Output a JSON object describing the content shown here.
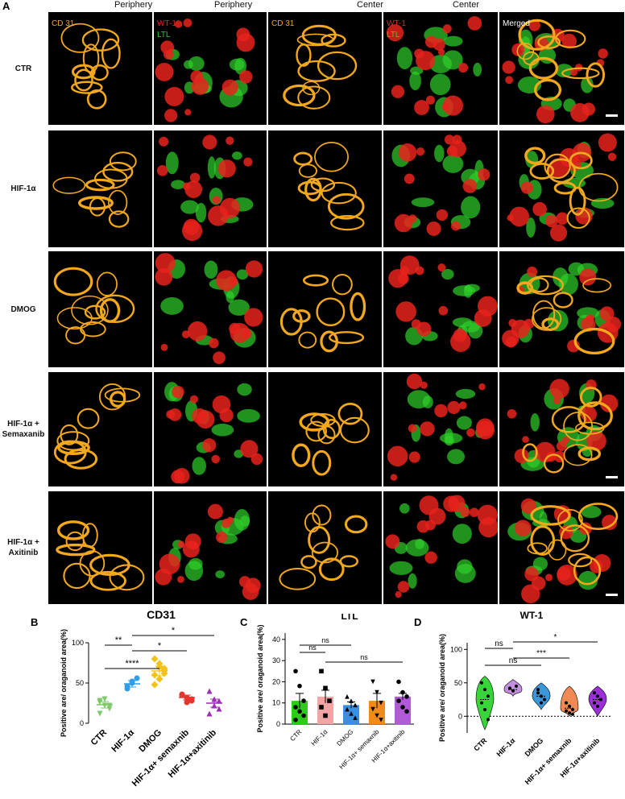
{
  "panel_letters": {
    "a": "A",
    "b": "B",
    "c": "C",
    "d": "D"
  },
  "column_headers": [
    "Periphery",
    "Periphery",
    "Center",
    "Center"
  ],
  "tile_labels": {
    "cd31": "CD 31",
    "wt1": "WT-1",
    "ltl": "LTL",
    "merged": "Merged"
  },
  "rows": [
    {
      "label_lines": [
        "CTR"
      ]
    },
    {
      "label_lines": [
        "HIF-1α"
      ]
    },
    {
      "label_lines": [
        "DMOG"
      ]
    },
    {
      "label_lines": [
        "HIF-1α +",
        "Semaxanib"
      ]
    },
    {
      "label_lines": [
        "HIF-1α +",
        "Axitinib"
      ]
    }
  ],
  "colors": {
    "cd31": "#f4a81c",
    "wt1": "#e8221c",
    "ltl": "#2fd02a",
    "ctr_b": "#7ec96b",
    "hif_b": "#2f9ee8",
    "dmog_b": "#f2c21a",
    "sema_b": "#e8352c",
    "axi_b": "#9b2fb6",
    "ctr_c": "#2ecc1a",
    "hif_c": "#f3a5a5",
    "dmog_c": "#3a8fe0",
    "sema_c": "#f08a1a",
    "axi_c": "#b05ad8",
    "ctr_d": "#37d43a",
    "hif_d": "#c48fe0",
    "dmog_d": "#3a97d9",
    "sema_d": "#f08a55",
    "axi_d": "#9c2fd8"
  },
  "chart_data": [
    {
      "type": "scatter",
      "panel": "B",
      "title": "CD31",
      "ylabel": "Positive are/ oraganoid area(%)",
      "categories": [
        "CTR",
        "HIF-1α",
        "DMOG",
        "HIF-1α+ semaxnib",
        "HIF-1α+axitinib"
      ],
      "yticks": [
        "0",
        "50",
        "100"
      ],
      "ylim": [
        0,
        100
      ],
      "means": [
        23,
        49,
        65,
        32,
        25
      ],
      "sems": [
        4,
        4,
        6,
        3,
        5
      ],
      "points": [
        [
          28,
          22,
          18,
          12,
          30,
          22,
          26
        ],
        [
          43,
          52,
          56,
          46,
          50
        ],
        [
          80,
          74,
          68,
          60,
          55,
          62,
          48,
          70,
          66
        ],
        [
          36,
          32,
          28,
          35,
          26,
          30
        ],
        [
          40,
          22,
          18,
          12,
          30,
          28
        ]
      ],
      "significance": [
        {
          "label": "**",
          "from": 0,
          "to": 1
        },
        {
          "label": "****",
          "from": 0,
          "to": 2
        },
        {
          "label": "*",
          "from": 1,
          "to": 3
        },
        {
          "label": "*",
          "from": 1,
          "to": 4
        }
      ]
    },
    {
      "type": "bar",
      "panel": "C",
      "title": "LTL",
      "ylabel": "Positive are/ oraganoid area(%)",
      "categories": [
        "CTR",
        "HIF-1α",
        "DMOG",
        "HIF-1α+ semaxnib",
        "HIF-1α+axitinib"
      ],
      "yticks": [
        "0",
        "10",
        "20",
        "30",
        "40"
      ],
      "ylim": [
        0,
        43
      ],
      "values": [
        11,
        13,
        9,
        11,
        13
      ],
      "sems": [
        3.5,
        3,
        1.5,
        3.5,
        1.5
      ],
      "points": [
        [
          25,
          18,
          11,
          8,
          6,
          4,
          2
        ],
        [
          25,
          17,
          11,
          8,
          4
        ],
        [
          13,
          11,
          9,
          7,
          5,
          3
        ],
        [
          20,
          15,
          10,
          7,
          4,
          2
        ],
        [
          20,
          15,
          13,
          11,
          8,
          6
        ]
      ],
      "significance": [
        {
          "label": "ns",
          "from": 0,
          "to": 1
        },
        {
          "label": "ns",
          "from": 0,
          "to": 2
        },
        {
          "label": "ns",
          "from": 1,
          "to": 4
        }
      ]
    },
    {
      "type": "violin",
      "panel": "D",
      "title": "WT-1",
      "ylabel": "Positive are/ oraganoid area(%)",
      "categories": [
        "CTR",
        "HIF-1α",
        "DMOG",
        "HIF-1α+ semaxnib",
        "HIF-1α+axitinib"
      ],
      "yticks": [
        "0",
        "50",
        "100"
      ],
      "ylim": [
        -25,
        110
      ],
      "medians": [
        25,
        40,
        30,
        12,
        25
      ],
      "ranges": [
        [
          -20,
          60
        ],
        [
          30,
          55
        ],
        [
          10,
          50
        ],
        [
          0,
          45
        ],
        [
          0,
          45
        ]
      ],
      "points": [
        [
          50,
          40,
          30,
          20,
          10,
          -5
        ],
        [
          42,
          38,
          45
        ],
        [
          40,
          30,
          25,
          35,
          20
        ],
        [
          20,
          15,
          10,
          8,
          5,
          3
        ],
        [
          35,
          30,
          25,
          20,
          15
        ]
      ],
      "significance": [
        {
          "label": "ns",
          "from": 0,
          "to": 1
        },
        {
          "label": "ns",
          "from": 0,
          "to": 2
        },
        {
          "label": "***",
          "from": 1,
          "to": 3
        },
        {
          "label": "*",
          "from": 1,
          "to": 4
        }
      ]
    }
  ]
}
